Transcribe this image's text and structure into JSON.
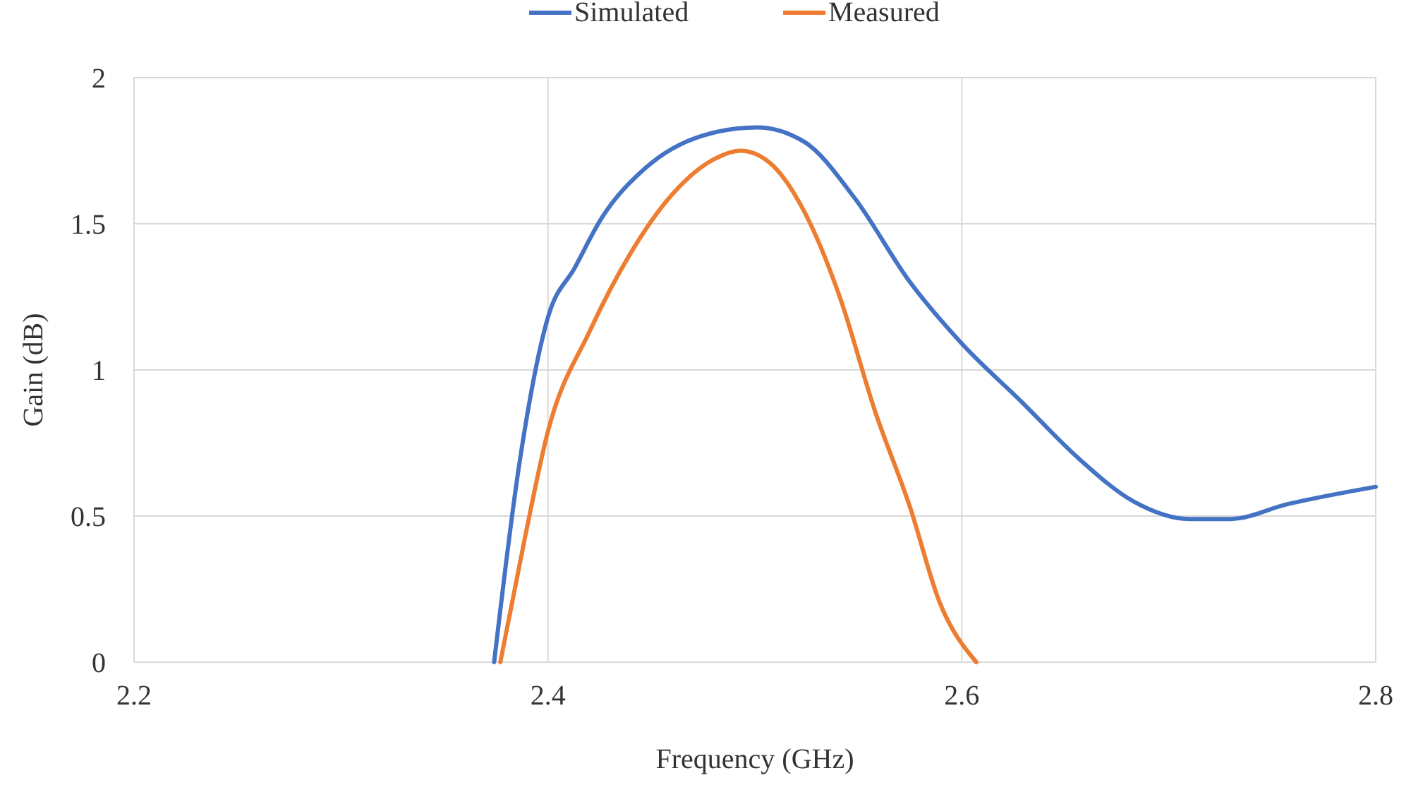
{
  "chart_data": {
    "type": "line",
    "xlabel": "Frequency (GHz)",
    "ylabel": "Gain (dB)",
    "xlim": [
      2.2,
      2.8
    ],
    "xticks": [
      2.2,
      2.4,
      2.6,
      2.8
    ],
    "ylim": [
      0,
      2
    ],
    "yticks": [
      0,
      0.5,
      1,
      1.5,
      2
    ],
    "grid": true,
    "legend": "top",
    "series": [
      {
        "name": "Simulated",
        "color": "#4472c4",
        "x": [
          2.374,
          2.386,
          2.4,
          2.413,
          2.426,
          2.447,
          2.474,
          2.501,
          2.524,
          2.548,
          2.575,
          2.6,
          2.629,
          2.656,
          2.683,
          2.71,
          2.73,
          2.757,
          2.8
        ],
        "values": [
          0,
          0.67,
          1.18,
          1.35,
          1.52,
          1.69,
          1.8,
          1.83,
          1.78,
          1.59,
          1.3,
          1.09,
          0.89,
          0.7,
          0.55,
          0.49,
          0.49,
          0.54,
          0.6
        ]
      },
      {
        "name": "Measured",
        "color": "#ed7d31",
        "x": [
          2.377,
          2.389,
          2.4,
          2.42,
          2.44,
          2.46,
          2.48,
          2.493,
          2.507,
          2.524,
          2.541,
          2.558,
          2.575,
          2.589,
          2.607
        ],
        "values": [
          0,
          0.43,
          0.79,
          1.13,
          1.4,
          1.6,
          1.72,
          1.75,
          1.71,
          1.54,
          1.25,
          0.86,
          0.53,
          0.21,
          0
        ]
      }
    ]
  }
}
